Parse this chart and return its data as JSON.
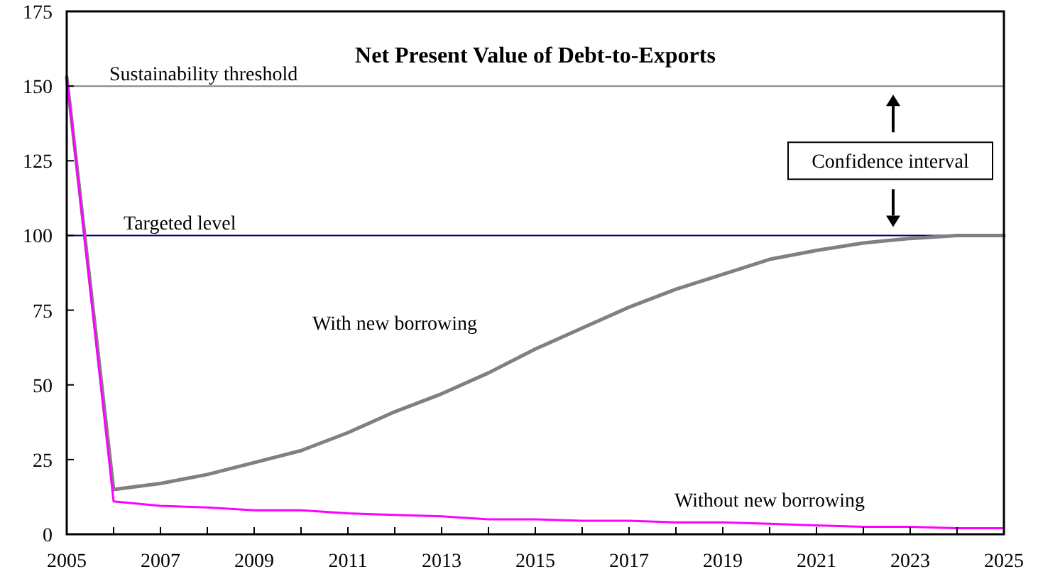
{
  "chart_data": {
    "type": "line",
    "title": "Net Present Value of Debt-to-Exports",
    "x": [
      2005,
      2006,
      2007,
      2008,
      2009,
      2010,
      2011,
      2012,
      2013,
      2014,
      2015,
      2016,
      2017,
      2018,
      2019,
      2020,
      2021,
      2022,
      2023,
      2024,
      2025
    ],
    "series": [
      {
        "name": "With new borrowing",
        "color": "#808080",
        "values": [
          153,
          15,
          17,
          20,
          24,
          28,
          34,
          41,
          47,
          54,
          62,
          69,
          76,
          82,
          87,
          92,
          95,
          97.5,
          99,
          100,
          100
        ]
      },
      {
        "name": "Without new borrowing",
        "color": "#ff00ff",
        "values": [
          153,
          11,
          9.5,
          9,
          8,
          8,
          7,
          6.5,
          6,
          5,
          5,
          4.5,
          4.5,
          4,
          4,
          3.5,
          3,
          2.5,
          2.5,
          2,
          2
        ]
      }
    ],
    "xlim": [
      2005,
      2025
    ],
    "xticks": [
      2005,
      {
        "value": 2006,
        "label": null
      },
      2007,
      {
        "value": 2008,
        "label": null
      },
      2009,
      {
        "value": 2010,
        "label": null
      },
      2011,
      {
        "value": 2012,
        "label": null
      },
      2013,
      {
        "value": 2014,
        "label": null
      },
      2015,
      {
        "value": 2016,
        "label": null
      },
      2017,
      {
        "value": 2018,
        "label": null
      },
      2019,
      {
        "value": 2020,
        "label": null
      },
      2021,
      {
        "value": 2022,
        "label": null
      },
      2023,
      {
        "value": 2024,
        "label": null
      },
      2025
    ],
    "ylim": [
      0,
      175
    ],
    "yticks": [
      0,
      25,
      50,
      75,
      100,
      125,
      150,
      175
    ],
    "ref_lines": [
      {
        "axis": "y",
        "value": 150,
        "label": "Sustainability threshold",
        "color": "#808080"
      },
      {
        "axis": "y",
        "value": 100,
        "label": "Targeted level",
        "color": "#000080"
      }
    ],
    "annotations": [
      "Confidence interval"
    ],
    "grid": false,
    "marker": "none",
    "line_style": "solid"
  }
}
